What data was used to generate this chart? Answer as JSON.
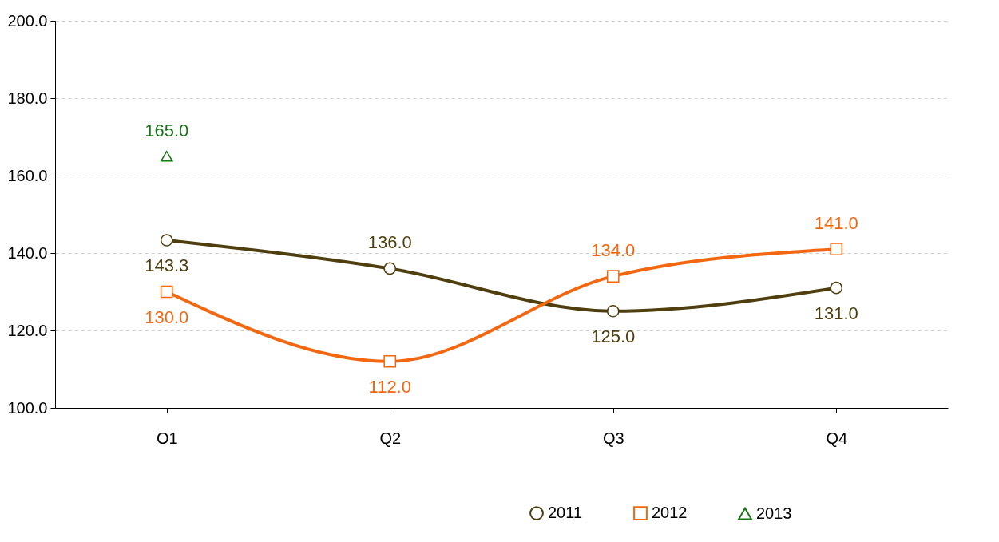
{
  "chart_data": {
    "type": "line",
    "categories": [
      "O1",
      "Q2",
      "Q3",
      "Q4"
    ],
    "series": [
      {
        "name": "2011",
        "color": "#4f3e0e",
        "marker": "circle",
        "values": [
          143.3,
          136.0,
          125.0,
          131.0
        ],
        "value_labels": [
          "143.3",
          "136.0",
          "125.0",
          "131.0"
        ]
      },
      {
        "name": "2012",
        "color": "#f2670f",
        "marker": "square",
        "values": [
          130.0,
          112.0,
          134.0,
          141.0
        ],
        "value_labels": [
          "130.0",
          "112.0",
          "134.0",
          "141.0"
        ]
      },
      {
        "name": "2013",
        "color": "#177517",
        "marker": "triangle",
        "values": [
          165.0,
          null,
          null,
          null
        ],
        "value_labels": [
          "165.0",
          null,
          null,
          null
        ]
      }
    ],
    "ylim": [
      100,
      200
    ],
    "yticks": [
      {
        "value": 100,
        "label": "100.0"
      },
      {
        "value": 120,
        "label": "120.0"
      },
      {
        "value": 140,
        "label": "140.0"
      },
      {
        "value": 160,
        "label": "160.0"
      },
      {
        "value": 180,
        "label": "180.0"
      },
      {
        "value": 200,
        "label": "200.0"
      }
    ],
    "grid": "y",
    "legend": "bottom right"
  }
}
